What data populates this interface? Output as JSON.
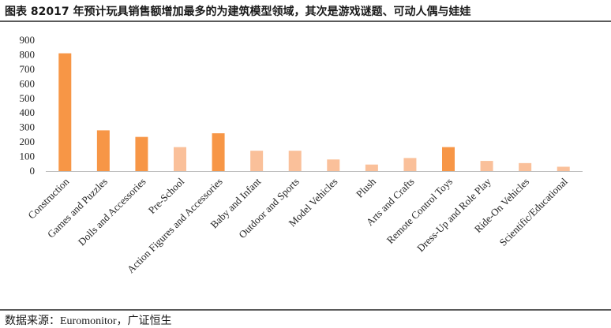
{
  "header": {
    "title": "图表 82017 年预计玩具销售额增加最多的为建筑模型领域，其次是游戏谜题、可动人偶与娃娃"
  },
  "footer": {
    "source": "数据来源：Euromonitor，广证恒生"
  },
  "colors": {
    "highlight": "#F79646",
    "normal": "#FAC09A",
    "axis": "#bfbfbf"
  },
  "chart_data": {
    "type": "bar",
    "categories": [
      "Construction",
      "Games and Puzzles",
      "Dolls and Accessories",
      "Pre-School",
      "Action Figures and Accessories",
      "Baby and Infant",
      "Outdoor and Sports",
      "Model Vehicles",
      "Plush",
      "Arts and Crafts",
      "Remote Control Toys",
      "Dress-Up and Role Play",
      "Ride-On Vehicles",
      "Scientific/Educational"
    ],
    "values": [
      810,
      280,
      235,
      165,
      260,
      140,
      140,
      80,
      45,
      90,
      165,
      70,
      55,
      30
    ],
    "highlighted": [
      true,
      true,
      true,
      false,
      true,
      false,
      false,
      false,
      false,
      false,
      true,
      false,
      false,
      false
    ],
    "ylim": [
      0,
      900
    ],
    "yticks": [
      0,
      100,
      200,
      300,
      400,
      500,
      600,
      700,
      800,
      900
    ],
    "grid": false,
    "legend": "none"
  }
}
